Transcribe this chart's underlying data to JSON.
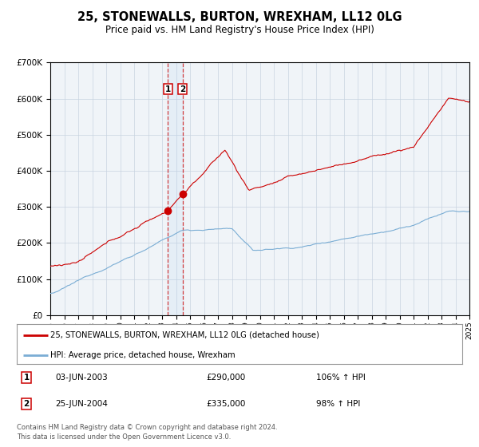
{
  "title": "25, STONEWALLS, BURTON, WREXHAM, LL12 0LG",
  "subtitle": "Price paid vs. HM Land Registry's House Price Index (HPI)",
  "legend_line1": "25, STONEWALLS, BURTON, WREXHAM, LL12 0LG (detached house)",
  "legend_line2": "HPI: Average price, detached house, Wrexham",
  "red_line_color": "#cc0000",
  "blue_line_color": "#7aadd4",
  "sale1_date": "03-JUN-2003",
  "sale1_price": 290000,
  "sale1_hpi": "106%",
  "sale2_date": "25-JUN-2004",
  "sale2_price": 335000,
  "sale2_hpi": "98%",
  "sale1_year": 2003.42,
  "sale2_year": 2004.48,
  "footnote1": "Contains HM Land Registry data © Crown copyright and database right 2024.",
  "footnote2": "This data is licensed under the Open Government Licence v3.0.",
  "ylim_max": 700000,
  "ylim_min": 0,
  "xlim_min": 1995,
  "xlim_max": 2025,
  "background_color": "#f0f4f8",
  "grid_color": "#c8d4e0"
}
